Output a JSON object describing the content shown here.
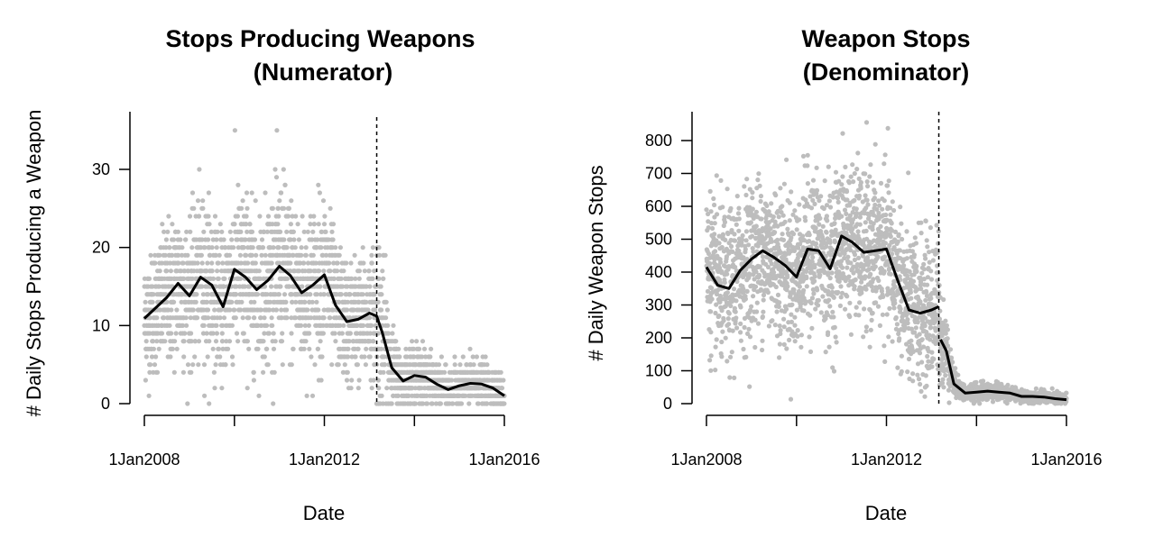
{
  "colors": {
    "points": "#bdbdbd",
    "smooth": "#000000",
    "axis": "#000000"
  },
  "chart_data": [
    {
      "type": "scatter",
      "title_line1": "Stops Producing Weapons",
      "title_line2": "(Numerator)",
      "xlabel": "Date",
      "ylabel": "# Daily Stops Producing a Weapon",
      "x_range": [
        "2008-01-01",
        "2016-01-01"
      ],
      "x_ticks": [
        "2008-01-01",
        "2010-01-01",
        "2012-01-01",
        "2014-01-01",
        "2016-01-01"
      ],
      "x_tick_labels": [
        "1Jan2008",
        "",
        "1Jan2012",
        "",
        "1Jan2016"
      ],
      "ylim": [
        0,
        36
      ],
      "y_ticks": [
        0,
        10,
        20,
        30
      ],
      "y_tick_labels": [
        "0",
        "10",
        "20",
        "30"
      ],
      "cutoff_date": "2013-03-01",
      "series": [
        {
          "kind": "smooth",
          "x": [
            "2008-01-01",
            "2008-07-01",
            "2008-10-01",
            "2009-01-01",
            "2009-04-01",
            "2009-07-01",
            "2009-10-01",
            "2010-01-01",
            "2010-04-01",
            "2010-07-01",
            "2010-10-01",
            "2011-01-01",
            "2011-04-01",
            "2011-07-01",
            "2011-10-01",
            "2012-01-01",
            "2012-04-01",
            "2012-07-01",
            "2012-10-01",
            "2013-01-01",
            "2013-03-01",
            "2013-04-15",
            "2013-07-01",
            "2013-10-01",
            "2014-01-01",
            "2014-04-01",
            "2014-07-01",
            "2014-10-01",
            "2015-01-01",
            "2015-04-01",
            "2015-07-01",
            "2015-10-01",
            "2016-01-01"
          ],
          "y": [
            10.9,
            13.6,
            15.4,
            13.8,
            16.2,
            15.2,
            12.4,
            17.2,
            16.2,
            14.6,
            15.8,
            17.6,
            16.4,
            14.2,
            15.2,
            16.5,
            12.6,
            10.5,
            10.8,
            11.6,
            11.2,
            9.1,
            4.6,
            2.9,
            3.6,
            3.4,
            2.5,
            1.8,
            2.3,
            2.6,
            2.5,
            2.0,
            1.0
          ]
        },
        {
          "kind": "points",
          "summary": "daily counts, roughly 0 to 36 before the cutoff and 0 to 14 after it; highest values near 35 to 36"
        }
      ]
    },
    {
      "type": "scatter",
      "title_line1": "Weapon Stops",
      "title_line2": "(Denominator)",
      "xlabel": "Date",
      "ylabel": "# Daily Weapon Stops",
      "x_range": [
        "2008-01-01",
        "2016-01-01"
      ],
      "x_ticks": [
        "2008-01-01",
        "2010-01-01",
        "2012-01-01",
        "2014-01-01",
        "2016-01-01"
      ],
      "x_tick_labels": [
        "1Jan2008",
        "",
        "1Jan2012",
        "",
        "1Jan2016"
      ],
      "ylim": [
        0,
        850
      ],
      "y_ticks": [
        0,
        100,
        200,
        300,
        400,
        500,
        600,
        700,
        800
      ],
      "y_tick_labels": [
        "0",
        "100",
        "200",
        "300",
        "400",
        "500",
        "600",
        "700",
        "800"
      ],
      "cutoff_date": "2013-03-01",
      "series": [
        {
          "kind": "smooth",
          "x": [
            "2008-01-01",
            "2008-04-01",
            "2008-07-01",
            "2008-10-01",
            "2009-01-01",
            "2009-04-01",
            "2009-07-01",
            "2009-10-01",
            "2010-01-01",
            "2010-04-01",
            "2010-07-01",
            "2010-10-01",
            "2011-01-01",
            "2011-04-01",
            "2011-07-01",
            "2011-10-01",
            "2012-01-01",
            "2012-04-01",
            "2012-07-01",
            "2012-10-01",
            "2013-01-01",
            "2013-03-01"
          ],
          "y": [
            415,
            360,
            350,
            405,
            440,
            465,
            445,
            420,
            385,
            470,
            465,
            410,
            510,
            490,
            460,
            465,
            470,
            375,
            285,
            275,
            285,
            295
          ]
        },
        {
          "kind": "smooth",
          "x": [
            "2013-03-15",
            "2013-05-01",
            "2013-07-01",
            "2013-10-01",
            "2014-01-01",
            "2014-04-01",
            "2014-07-01",
            "2014-10-01",
            "2015-01-01",
            "2015-04-01",
            "2015-07-01",
            "2015-10-01",
            "2016-01-01"
          ],
          "y": [
            195,
            160,
            60,
            32,
            35,
            38,
            35,
            32,
            22,
            22,
            20,
            15,
            12
          ]
        },
        {
          "kind": "points",
          "summary": "daily counts, roughly 50 to 850 before the cutoff and 0 to 110 after it; highest values near 850"
        }
      ]
    }
  ]
}
